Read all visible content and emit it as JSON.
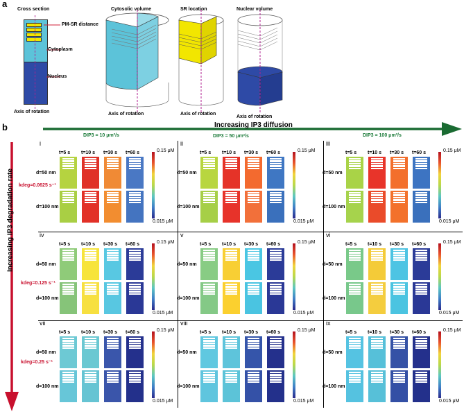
{
  "panel_a": {
    "letter": "a",
    "titles": [
      "Cross section",
      "Cytosolic volume",
      "SR location",
      "Nuclear volume"
    ],
    "labels": {
      "pm_sr": "PM-SR distance",
      "cytoplasm": "Cytoplasm",
      "nucleus": "Nucleus",
      "axis": "Axis of rotation"
    },
    "colors": {
      "cytoplasm": "#5cc3d9",
      "nucleus": "#2e4aa6",
      "sr": "#f2e600"
    }
  },
  "panel_b": {
    "letter": "b",
    "diffusion_arrow": "Increasing  IP3 diffusion",
    "degradation_arrow": "Increasing  IP3 degradation rate",
    "diffusion_cols": [
      "DIP3 = 10 μm²/s",
      "DIP3 = 50 μm²/s",
      "DIP3 = 100 μm²/s"
    ],
    "kdeg_rows": [
      "kdeg=0.0625 s⁻¹",
      "kdeg=0.125 s⁻¹",
      "kdeg=0.25 s⁻¹"
    ],
    "times": [
      "t=5 s",
      "t=10 s",
      "t=30 s",
      "t=60 s"
    ],
    "distances": [
      "d=50 nm",
      "d=100 nm"
    ],
    "cb_max": "0.15 μM",
    "cb_min": "0.015 μM",
    "panels": [
      {
        "id": "i",
        "colors": [
          [
            "#b5d340",
            "#e03128",
            "#f08a35",
            "#4a78c4"
          ],
          [
            "#a9cf44",
            "#e23127",
            "#f28d30",
            "#4474c0"
          ]
        ]
      },
      {
        "id": "ii",
        "colors": [
          [
            "#b8d63f",
            "#e53328",
            "#f36a2f",
            "#3f77c3"
          ],
          [
            "#a6cf47",
            "#e7332a",
            "#f2703a",
            "#3a70bc"
          ]
        ]
      },
      {
        "id": "iii",
        "colors": [
          [
            "#a9d347",
            "#e8342a",
            "#f36f2c",
            "#3d74c2"
          ],
          [
            "#a6d34c",
            "#ea4b2a",
            "#f3712b",
            "#3a70bc"
          ]
        ]
      },
      {
        "id": "iv",
        "colors": [
          [
            "#8fcb79",
            "#f7e43b",
            "#58c8e2",
            "#2b3b98"
          ],
          [
            "#86c479",
            "#f7e040",
            "#58c7e1",
            "#2a3896"
          ]
        ]
      },
      {
        "id": "v",
        "colors": [
          [
            "#88cc84",
            "#f8cf34",
            "#4ac6e3",
            "#2b3b98"
          ],
          [
            "#84c986",
            "#fbd02f",
            "#4ac4e1",
            "#2a3896"
          ]
        ]
      },
      {
        "id": "vi",
        "colors": [
          [
            "#79c989",
            "#f4cb38",
            "#4dc4e3",
            "#2b3b98"
          ],
          [
            "#78c88b",
            "#f4cd3e",
            "#4bc4e1",
            "#2a3896"
          ]
        ]
      },
      {
        "id": "vii",
        "colors": [
          [
            "#6dc9d4",
            "#6ac8d2",
            "#3a56ab",
            "#24308c"
          ],
          [
            "#67c6d8",
            "#66c4d3",
            "#3a55aa",
            "#23308b"
          ]
        ]
      },
      {
        "id": "viii",
        "colors": [
          [
            "#60c8e0",
            "#5ec4db",
            "#3555aa",
            "#24308c"
          ],
          [
            "#5fc5de",
            "#5cc3d8",
            "#3451a7",
            "#23308b"
          ]
        ]
      },
      {
        "id": "ix",
        "colors": [
          [
            "#55c3e2",
            "#56c0d9",
            "#3552a6",
            "#24308c"
          ],
          [
            "#55c2e0",
            "#57c0d8",
            "#334fa5",
            "#23308b"
          ]
        ]
      }
    ]
  }
}
